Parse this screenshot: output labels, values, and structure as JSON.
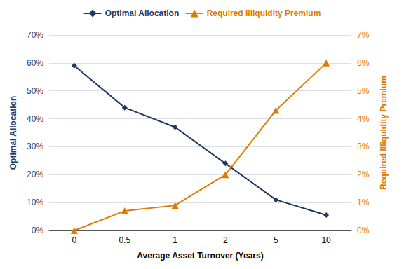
{
  "chart_data": {
    "type": "line",
    "xlabel": "Average Asset Turnover (Years)",
    "ylabel": "Optimal Allocation",
    "y2label": "Required Illiquidity Premium",
    "categories": [
      "0",
      "0.5",
      "1",
      "2",
      "5",
      "10"
    ],
    "series": [
      {
        "name": "Optimal Allocation",
        "color": "#1F3864",
        "marker": "diamond",
        "values": [
          0.59,
          0.44,
          0.37,
          0.24,
          0.11,
          0.055
        ]
      },
      {
        "name": "Required Illiquidity Premium",
        "color": "#E07B00",
        "marker": "triangle",
        "axis": "y2",
        "values": [
          0.0,
          0.007,
          0.009,
          0.02,
          0.043,
          0.06
        ]
      }
    ],
    "ylim": [
      0,
      0.7
    ],
    "yticks": [
      {
        "value": 0,
        "label": "0%"
      },
      {
        "value": 0.1,
        "label": "10%"
      },
      {
        "value": 0.2,
        "label": "20%"
      },
      {
        "value": 0.3,
        "label": "30%"
      },
      {
        "value": 0.4,
        "label": "40%"
      },
      {
        "value": 0.5,
        "label": "50%"
      },
      {
        "value": 0.6,
        "label": "60%"
      },
      {
        "value": 0.7,
        "label": "70%"
      }
    ],
    "y2lim": [
      0,
      0.07
    ],
    "y2ticks": [
      {
        "value": 0,
        "label": "0%"
      },
      {
        "value": 0.01,
        "label": "1%"
      },
      {
        "value": 0.02,
        "label": "2%"
      },
      {
        "value": 0.03,
        "label": "3%"
      },
      {
        "value": 0.04,
        "label": "4%"
      },
      {
        "value": 0.05,
        "label": "5%"
      },
      {
        "value": 0.06,
        "label": "6%"
      },
      {
        "value": 0.07,
        "label": "7%"
      }
    ],
    "grid": true,
    "legend": "top"
  }
}
